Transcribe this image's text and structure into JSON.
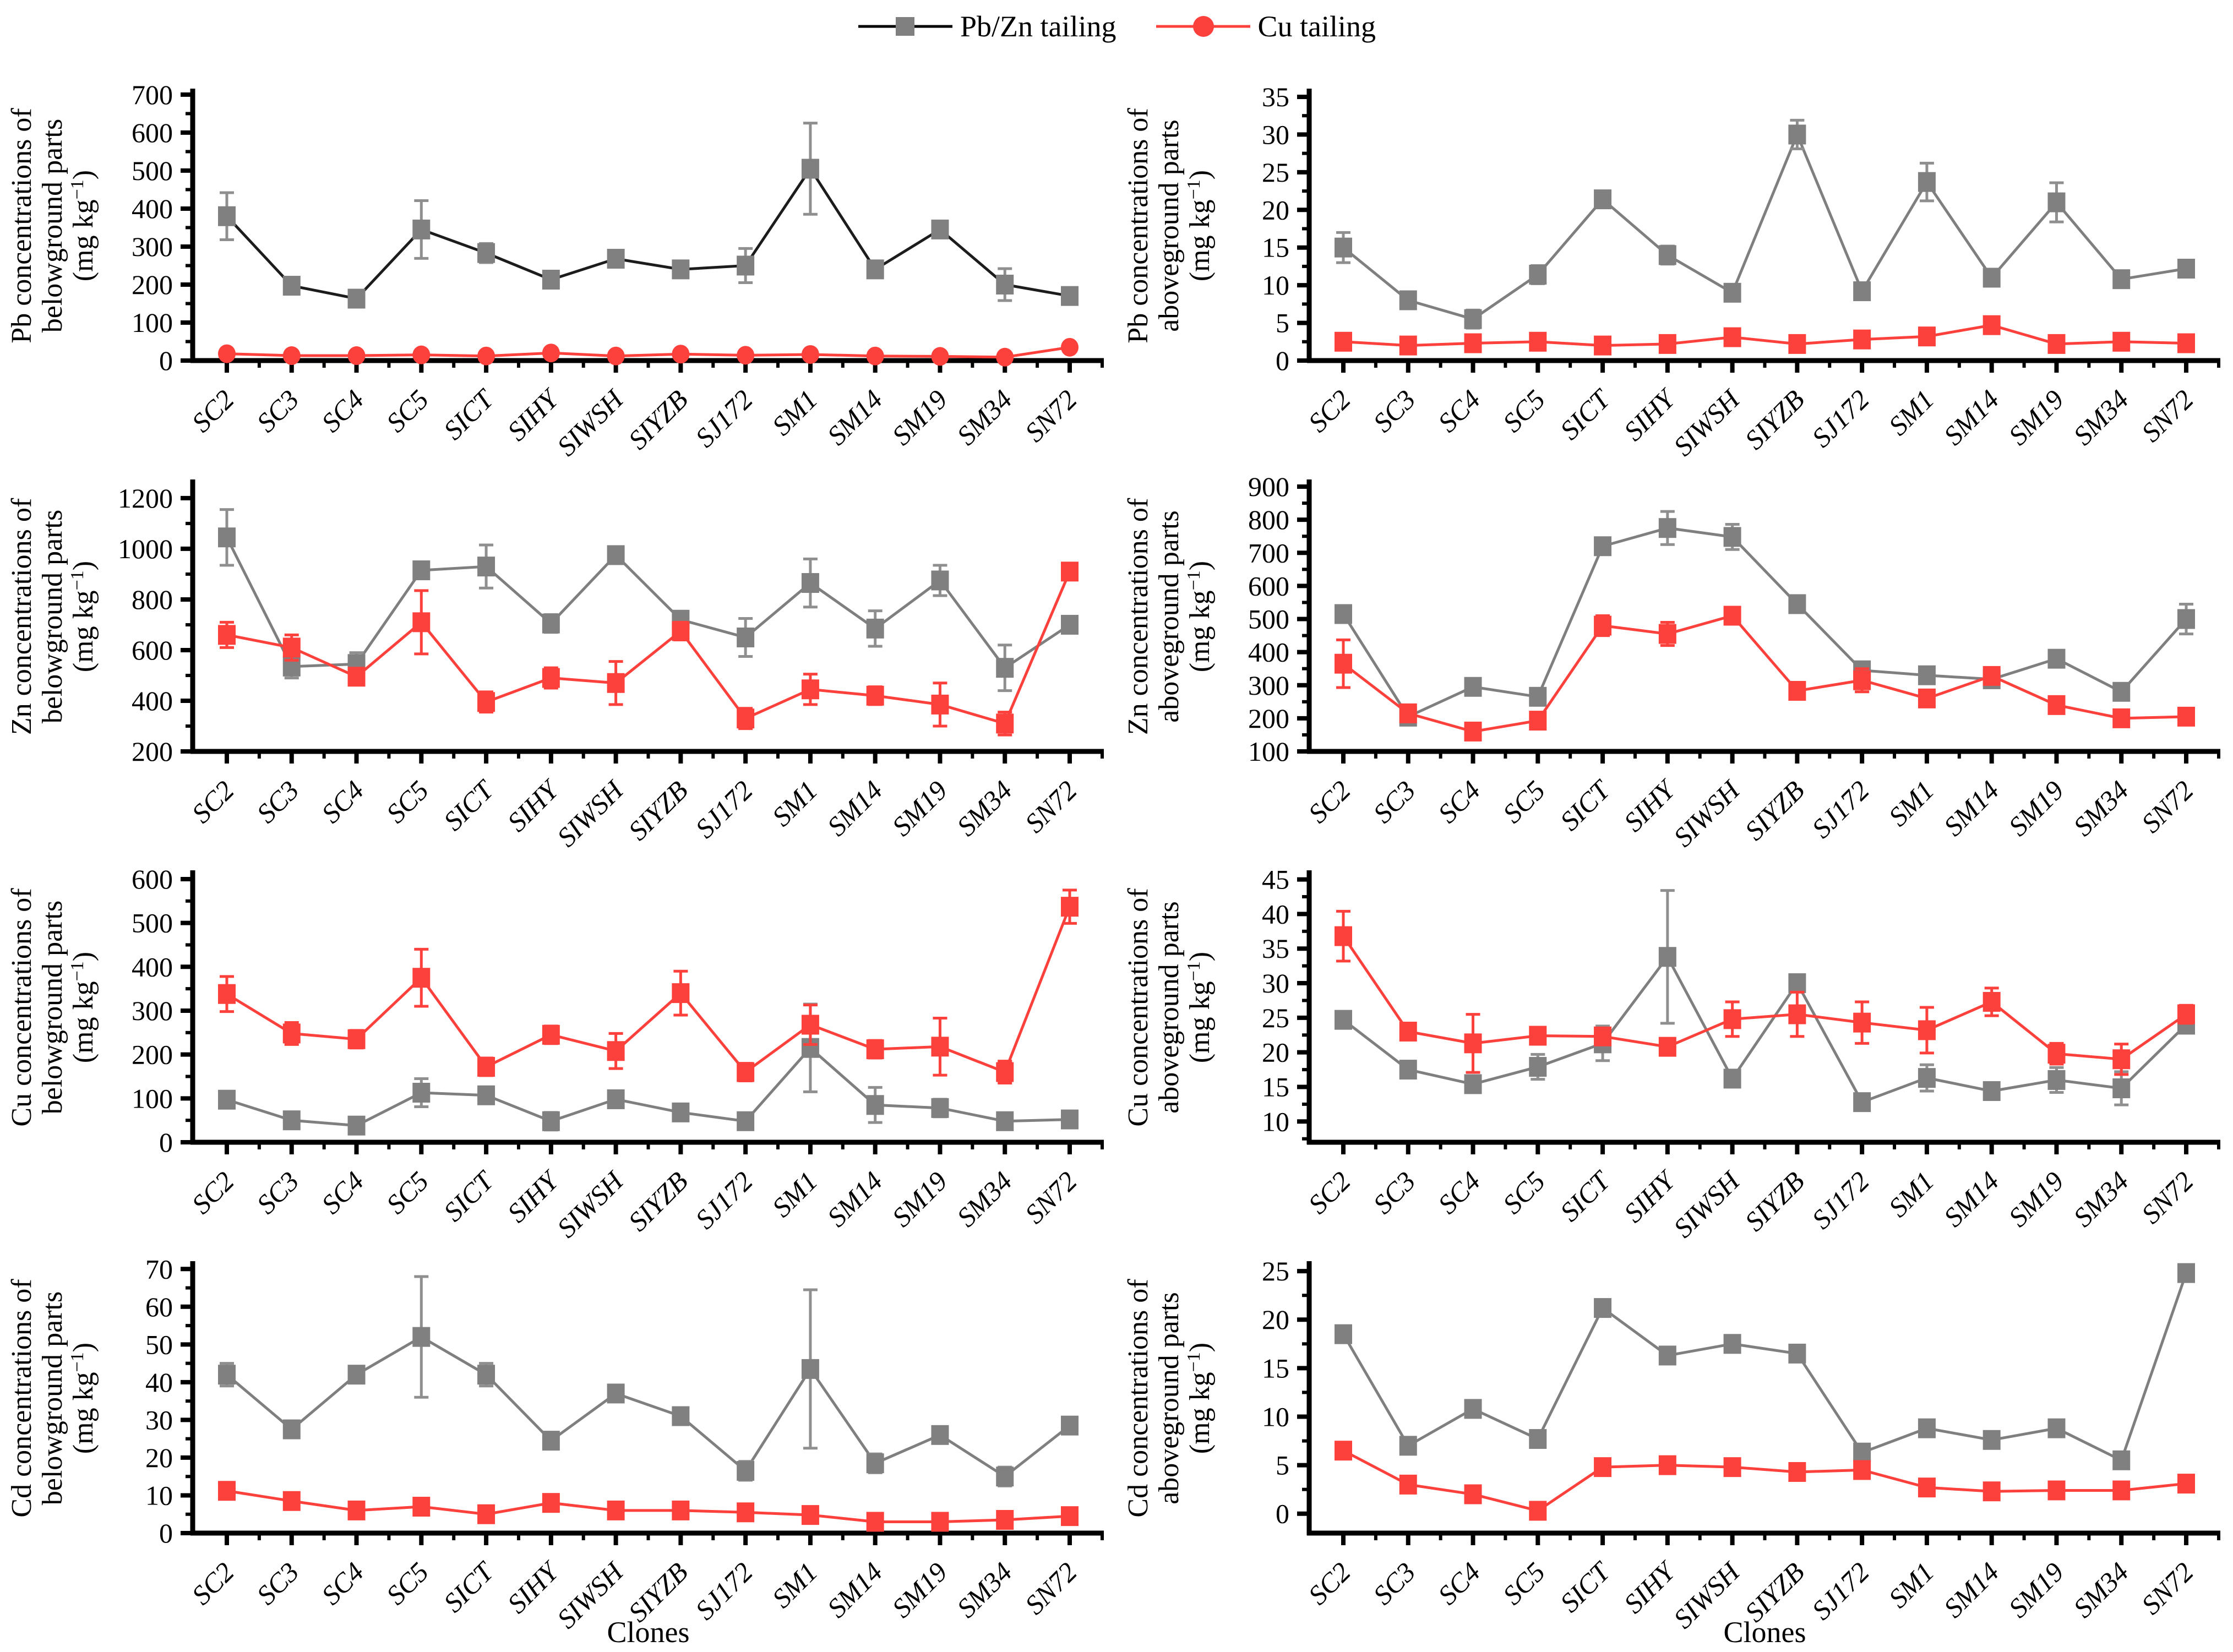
{
  "legend": {
    "items": [
      {
        "label": "Pb/Zn tailing",
        "marker": "square",
        "marker_color": "#808080",
        "line_color": "#000000"
      },
      {
        "label": "Cu tailing",
        "marker": "circle",
        "marker_color": "#FC413C",
        "line_color": "#FC413C"
      }
    ]
  },
  "chart_data": {
    "type": "line",
    "categories": [
      "SC2",
      "SC3",
      "SC4",
      "SC5",
      "SICT",
      "SIHY",
      "SIWSH",
      "SIYZB",
      "SJ172",
      "SM1",
      "SM14",
      "SM19",
      "SM34",
      "SN72"
    ],
    "legend_position": "top-center",
    "grid": "off",
    "charts": [
      {
        "id": "pb-belowground",
        "ylabel_lines": [
          "Pb concentrations of",
          "belowground parts"
        ],
        "unit": "(mg kg^-1)",
        "ylim": [
          0,
          710
        ],
        "yticks": {
          "min": 0,
          "max": 700,
          "step": 100
        },
        "series": [
          {
            "name": "Pb/Zn tailing",
            "marker": "square",
            "color": "#808080",
            "line_color": "#1c1c1c",
            "error_color": "#8f8f8f",
            "values": [
              380,
              197,
              163,
              345,
              283,
              213,
              268,
              240,
              250,
              505,
              240,
              345,
              200,
              170
            ],
            "errors": [
              62,
              15,
              22,
              76,
              25,
              16,
              18,
              20,
              45,
              120,
              12,
              20,
              42,
              16
            ]
          },
          {
            "name": "Cu tailing",
            "marker": "circle",
            "color": "#FC413C",
            "line_color": "#FC413C",
            "error_color": "#FC413C",
            "values": [
              18,
              13,
              13,
              15,
              12,
              20,
              12,
              17,
              14,
              16,
              12,
              11,
              9,
              35
            ]
          }
        ]
      },
      {
        "id": "pb-aboveground",
        "ylabel_lines": [
          "Pb concentrations of",
          "aboveground parts"
        ],
        "unit": "(mg kg^-1)",
        "ylim": [
          0,
          35.8
        ],
        "yticks": {
          "min": 0,
          "max": 35,
          "step": 5
        },
        "series": [
          {
            "name": "Pb/Zn tailing",
            "marker": "square",
            "color": "#808080",
            "line_color": "#7f7f7f",
            "error_color": "#8f8f8f",
            "values": [
              15,
              8,
              5.5,
              11.4,
              21.4,
              14,
              9,
              30,
              9.2,
              23.7,
              11,
              21,
              10.8,
              12.2
            ],
            "errors": [
              2,
              1,
              1.2,
              1.2,
              1,
              1.2,
              1,
              1.9,
              1,
              2.5,
              1,
              2.6,
              1,
              0.8
            ]
          },
          {
            "name": "Cu tailing",
            "marker": "square",
            "color": "#FC413C",
            "line_color": "#FC413C",
            "error_color": "#FC413C",
            "values": [
              2.5,
              2,
              2.3,
              2.5,
              2,
              2.2,
              3.1,
              2.2,
              2.8,
              3.2,
              4.7,
              2.2,
              2.5,
              2.3
            ]
          }
        ]
      },
      {
        "id": "zn-belowground",
        "ylabel_lines": [
          "Zn concentrations of",
          "belowground parts"
        ],
        "unit": "(mg kg^-1)",
        "ylim": [
          200,
          1265
        ],
        "yticks": {
          "min": 200,
          "max": 1200,
          "step": 200
        },
        "series": [
          {
            "name": "Pb/Zn tailing",
            "marker": "square",
            "color": "#808080",
            "line_color": "#7f7f7f",
            "error_color": "#8f8f8f",
            "values": [
              1045,
              535,
              545,
              915,
              930,
              705,
              975,
              720,
              650,
              865,
              685,
              875,
              530,
              700
            ],
            "errors": [
              110,
              45,
              45,
              30,
              85,
              35,
              30,
              30,
              75,
              95,
              70,
              60,
              90,
              30
            ]
          },
          {
            "name": "Cu tailing",
            "marker": "square",
            "color": "#FC413C",
            "line_color": "#FC413C",
            "error_color": "#FC413C",
            "values": [
              660,
              610,
              495,
              710,
              395,
              490,
              470,
              675,
              330,
              445,
              420,
              385,
              310,
              910
            ],
            "errors": [
              50,
              50,
              30,
              125,
              40,
              40,
              85,
              35,
              40,
              60,
              35,
              85,
              45,
              30
            ]
          }
        ]
      },
      {
        "id": "zn-aboveground",
        "ylabel_lines": [
          "Zn concentrations of",
          "aboveground parts"
        ],
        "unit": "(mg kg^-1)",
        "ylim": [
          100,
          915
        ],
        "yticks": {
          "min": 100,
          "max": 900,
          "step": 100
        },
        "series": [
          {
            "name": "Pb/Zn tailing",
            "marker": "square",
            "color": "#808080",
            "line_color": "#7f7f7f",
            "error_color": "#8f8f8f",
            "values": [
              515,
              205,
              295,
              265,
              720,
              775,
              748,
              545,
              345,
              330,
              318,
              380,
              280,
              500
            ],
            "errors": [
              25,
              25,
              20,
              20,
              20,
              50,
              38,
              25,
              15,
              25,
              15,
              25,
              20,
              45
            ]
          },
          {
            "name": "Cu tailing",
            "marker": "square",
            "color": "#FC413C",
            "line_color": "#FC413C",
            "error_color": "#FC413C",
            "values": [
              365,
              215,
              160,
              193,
              480,
              455,
              510,
              283,
              315,
              260,
              328,
              240,
              200,
              205
            ],
            "errors": [
              72,
              20,
              20,
              25,
              30,
              35,
              20,
              20,
              35,
              25,
              25,
              20,
              20,
              20
            ]
          }
        ]
      },
      {
        "id": "cu-belowground",
        "ylabel_lines": [
          "Cu concentrations of",
          "belowground parts"
        ],
        "unit": "(mg kg^-1)",
        "ylim": [
          0,
          615
        ],
        "yticks": {
          "min": 0,
          "max": 600,
          "step": 100
        },
        "series": [
          {
            "name": "Pb/Zn tailing",
            "marker": "square",
            "color": "#808080",
            "line_color": "#7f7f7f",
            "error_color": "#8f8f8f",
            "values": [
              97,
              50,
              38,
              113,
              107,
              48,
              98,
              68,
              48,
              215,
              85,
              78,
              48,
              52
            ],
            "errors": [
              15,
              18,
              18,
              32,
              15,
              20,
              15,
              18,
              18,
              100,
              40,
              20,
              15,
              18
            ]
          },
          {
            "name": "Cu tailing",
            "marker": "square",
            "color": "#FC413C",
            "line_color": "#FC413C",
            "error_color": "#FC413C",
            "values": [
              338,
              248,
              235,
              375,
              172,
              245,
              208,
              340,
              160,
              268,
              212,
              218,
              160,
              537
            ],
            "errors": [
              40,
              25,
              20,
              65,
              20,
              20,
              40,
              50,
              20,
              45,
              20,
              65,
              25,
              38
            ]
          }
        ]
      },
      {
        "id": "cu-aboveground",
        "ylabel_lines": [
          "Cu concentrations of",
          "aboveground parts"
        ],
        "unit": "(mg kg^-1)",
        "ylim": [
          7,
          46
        ],
        "yticks": {
          "min": 10,
          "max": 45,
          "step": 5
        },
        "series": [
          {
            "name": "Pb/Zn tailing",
            "marker": "square",
            "color": "#808080",
            "line_color": "#7f7f7f",
            "error_color": "#8f8f8f",
            "values": [
              24.7,
              17.5,
              15.4,
              17.9,
              21.3,
              33.8,
              16.2,
              30,
              12.8,
              16.3,
              14.4,
              16,
              14.8,
              24
            ],
            "errors": [
              1.2,
              1,
              1,
              1.8,
              2.5,
              9.6,
              1.2,
              0.8,
              1.2,
              1.9,
              1.2,
              1.8,
              2.4,
              1
            ]
          },
          {
            "name": "Cu tailing",
            "marker": "square",
            "color": "#FC413C",
            "line_color": "#FC413C",
            "error_color": "#FC413C",
            "values": [
              36.8,
              23,
              21.3,
              22.4,
              22.3,
              20.8,
              24.8,
              25.5,
              24.3,
              23.2,
              27.3,
              19.8,
              19,
              25.5
            ],
            "errors": [
              3.6,
              1.2,
              4.2,
              1.1,
              1,
              1.2,
              2.5,
              3.2,
              3,
              3.3,
              2,
              1.5,
              2.2,
              1.3
            ]
          }
        ]
      },
      {
        "id": "cd-belowground",
        "ylabel_lines": [
          "Cd concentrations of",
          "belowground parts"
        ],
        "unit": "(mg kg^-1)",
        "ylim": [
          0,
          71.5
        ],
        "yticks": {
          "min": 0,
          "max": 70,
          "step": 10
        },
        "xlabel": "Clones",
        "series": [
          {
            "name": "Pb/Zn tailing",
            "marker": "square",
            "color": "#808080",
            "line_color": "#7f7f7f",
            "error_color": "#8f8f8f",
            "values": [
              42,
              27.5,
              42,
              52,
              42,
              24.5,
              37,
              31,
              16.5,
              43.5,
              18.5,
              26,
              15,
              28.5
            ],
            "errors": [
              3,
              2,
              2,
              16,
              3,
              2,
              2,
              2,
              2.5,
              21,
              2.5,
              2,
              2.5,
              2
            ]
          },
          {
            "name": "Cu tailing",
            "marker": "square",
            "color": "#FC413C",
            "line_color": "#FC413C",
            "error_color": "#FC413C",
            "values": [
              11.2,
              8.5,
              6,
              7,
              5,
              8,
              6,
              6,
              5.5,
              4.8,
              3,
              3,
              3.5,
              4.5
            ]
          }
        ]
      },
      {
        "id": "cd-aboveground",
        "ylabel_lines": [
          "Cd concentrations of",
          "aboveground parts"
        ],
        "unit": "(mg kg^-1)",
        "ylim": [
          -2,
          25.8
        ],
        "yticks": {
          "min": 0,
          "max": 25,
          "step": 5
        },
        "xlabel": "Clones",
        "series": [
          {
            "name": "Pb/Zn tailing",
            "marker": "square",
            "color": "#808080",
            "line_color": "#7f7f7f",
            "error_color": "#8f8f8f",
            "values": [
              18.5,
              7,
              10.8,
              7.7,
              21.2,
              16.3,
              17.5,
              16.5,
              6.3,
              8.8,
              7.6,
              8.8,
              5.5,
              24.8
            ]
          },
          {
            "name": "Cu tailing",
            "marker": "square",
            "color": "#FC413C",
            "line_color": "#FC413C",
            "error_color": "#FC413C",
            "values": [
              6.5,
              3,
              2,
              0.3,
              4.8,
              5,
              4.8,
              4.3,
              4.5,
              2.7,
              2.3,
              2.4,
              2.4,
              3.1
            ]
          }
        ]
      }
    ]
  }
}
